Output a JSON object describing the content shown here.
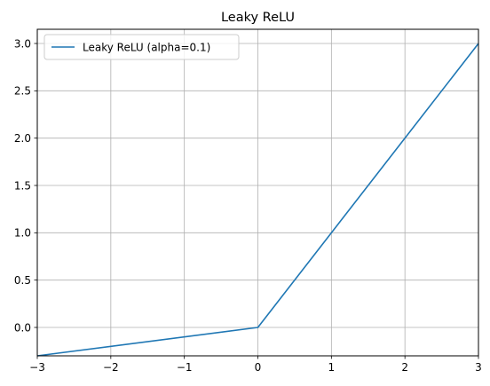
{
  "chart_data": {
    "type": "line",
    "title": "Leaky ReLU",
    "xlabel": "",
    "ylabel": "",
    "xlim": [
      -3,
      3
    ],
    "ylim": [
      -0.3,
      3.15
    ],
    "xticks": [
      -3,
      -2,
      -1,
      0,
      1,
      2,
      3
    ],
    "yticks": [
      0.0,
      0.5,
      1.0,
      1.5,
      2.0,
      2.5,
      3.0
    ],
    "xtick_labels": [
      "−3",
      "−2",
      "−1",
      "0",
      "1",
      "2",
      "3"
    ],
    "ytick_labels": [
      "0.0",
      "0.5",
      "1.0",
      "1.5",
      "2.0",
      "2.5",
      "3.0"
    ],
    "grid": true,
    "legend_position": "top-left",
    "series": [
      {
        "name": "Leaky ReLU (alpha=0.1)",
        "color": "#1f77b4",
        "x": [
          -3,
          0,
          3
        ],
        "y": [
          -0.3,
          0,
          3
        ]
      }
    ]
  }
}
